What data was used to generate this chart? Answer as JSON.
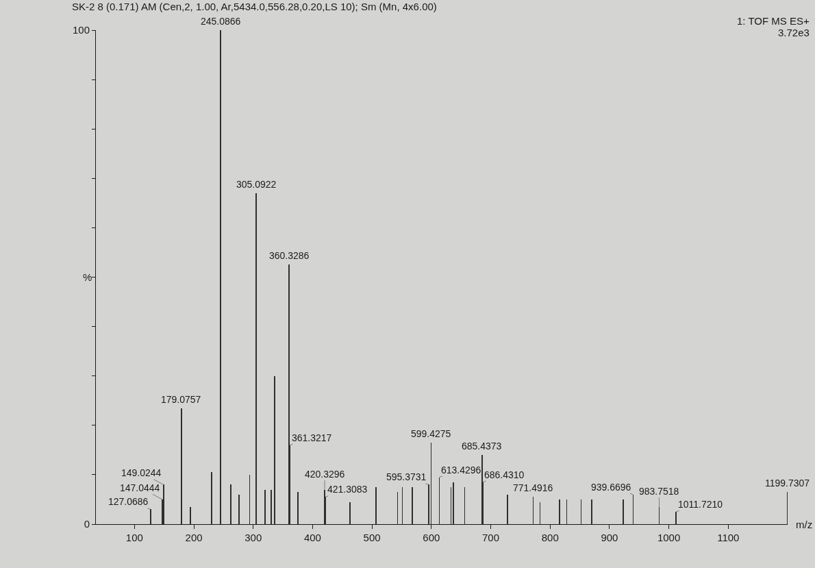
{
  "chart_data": {
    "type": "bar",
    "title": "SK-2 8 (0.171) AM (Cen,2, 1.00, Ar,5434.0,556.28,0.20,LS 10); Sm (Mn, 4x6.00)",
    "xlabel": "m/z",
    "ylabel": "%",
    "color": "#2e2e2e",
    "x": [
      127.0686,
      147.0444,
      149.0244,
      179.0757,
      194,
      230,
      245.0866,
      262,
      276,
      294,
      305.0922,
      320,
      330,
      336,
      360.3286,
      361.3217,
      375,
      420.3296,
      421.3083,
      463,
      507,
      543,
      551,
      568,
      595.3731,
      599.4275,
      613.4296,
      633,
      637,
      656,
      685.4373,
      686.431,
      728,
      771.4916,
      783,
      816,
      828,
      852,
      870,
      923,
      939.6696,
      983.7518,
      1011.721,
      1199.7307
    ],
    "values": [
      3,
      5,
      8,
      23.5,
      3.5,
      10.5,
      100,
      8,
      6,
      10,
      67,
      7,
      7,
      30,
      52.5,
      16,
      6.5,
      7,
      5.5,
      4.5,
      7.5,
      6.5,
      7.5,
      7.5,
      8,
      16.5,
      9.5,
      7.5,
      8.5,
      7.5,
      14,
      8.5,
      6,
      5.5,
      4.5,
      5,
      5,
      5,
      5,
      5,
      6,
      3.5,
      2.5,
      6.5
    ],
    "xlim": [
      35,
      1200
    ],
    "xticks": [
      100,
      200,
      300,
      400,
      500,
      600,
      700,
      800,
      900,
      1000,
      1100
    ],
    "ylim": [
      0,
      100
    ],
    "yticks": [
      0,
      {
        "value": 10,
        "label": null
      },
      {
        "value": 20,
        "label": null
      },
      {
        "value": 30,
        "label": null
      },
      {
        "value": 40,
        "label": null
      },
      {
        "value": 50,
        "label": null
      },
      {
        "value": 60,
        "label": null
      },
      {
        "value": 70,
        "label": null
      },
      {
        "value": 80,
        "label": null
      },
      {
        "value": 90,
        "label": null
      },
      100
    ],
    "annotations": [
      "1: TOF MS ES+",
      "3.72e3",
      {
        "text": "127.0686",
        "x": 127.0686,
        "y": 3
      },
      {
        "text": "147.0444",
        "x": 147.0444,
        "y": 5
      },
      {
        "text": "149.0244",
        "x": 149.0244,
        "y": 8
      },
      {
        "text": "179.0757",
        "x": 179.0757,
        "y": 23.5
      },
      {
        "text": "245.0866",
        "x": 245.0866,
        "y": 100
      },
      {
        "text": "305.0922",
        "x": 305.0922,
        "y": 67
      },
      {
        "text": "360.3286",
        "x": 360.3286,
        "y": 52.5
      },
      {
        "text": "361.3217",
        "x": 361.3217,
        "y": 16
      },
      {
        "text": "420.3296",
        "x": 420.3296,
        "y": 7
      },
      {
        "text": "421.3083",
        "x": 421.3083,
        "y": 5.5
      },
      {
        "text": "595.3731",
        "x": 595.3731,
        "y": 8
      },
      {
        "text": "599.4275",
        "x": 599.4275,
        "y": 16.5
      },
      {
        "text": "613.4296",
        "x": 613.4296,
        "y": 9.5
      },
      {
        "text": "685.4373",
        "x": 685.4373,
        "y": 14
      },
      {
        "text": "686.4310",
        "x": 686.431,
        "y": 8.5
      },
      {
        "text": "771.4916",
        "x": 771.4916,
        "y": 5.5
      },
      {
        "text": "939.6696",
        "x": 939.6696,
        "y": 6
      },
      {
        "text": "983.7518",
        "x": 983.7518,
        "y": 3.5
      },
      {
        "text": "1011.7210",
        "x": 1011.721,
        "y": 2.5
      },
      {
        "text": "1199.7307",
        "x": 1199.7307,
        "y": 6.5
      }
    ]
  }
}
